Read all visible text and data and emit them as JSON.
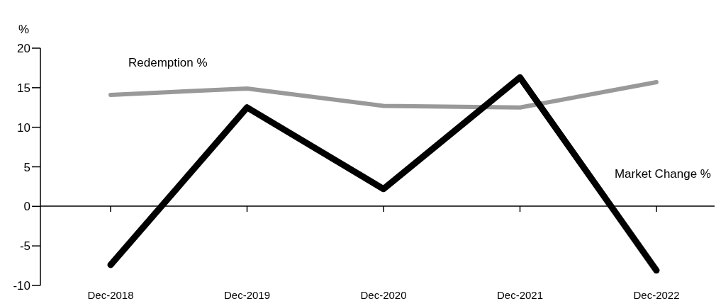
{
  "chart_data": {
    "type": "line",
    "ylabel": "%",
    "categories": [
      "Dec-2018",
      "Dec-2019",
      "Dec-2020",
      "Dec-2021",
      "Dec-2022"
    ],
    "series": [
      {
        "name": "Redemption %",
        "color": "#999999",
        "values": [
          14.1,
          14.9,
          12.7,
          12.5,
          15.7
        ]
      },
      {
        "name": "Market Change %",
        "color": "#000000",
        "values": [
          -7.4,
          12.5,
          2.2,
          16.3,
          -8.1
        ]
      }
    ],
    "ylim": [
      -10,
      20
    ],
    "yticks": [
      -10,
      -5,
      0,
      5,
      10,
      15,
      20
    ],
    "marker": "none",
    "line_style": "solid"
  }
}
